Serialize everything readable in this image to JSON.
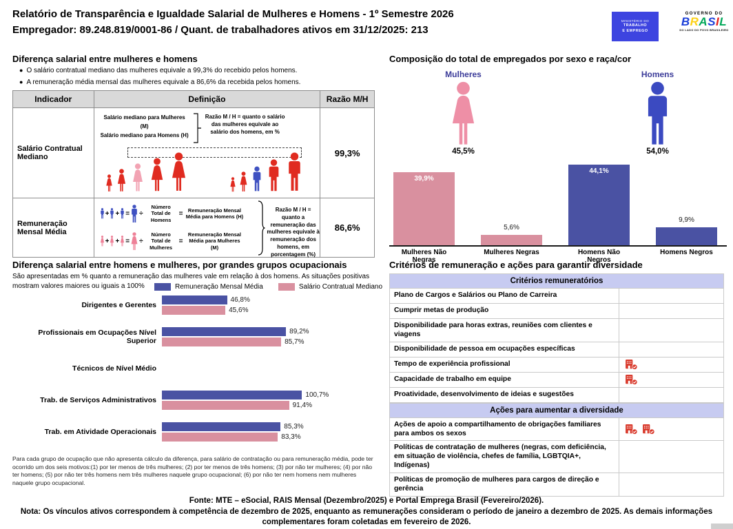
{
  "header": {
    "title_line1": "Relatório de Transparência e Igualdade Salarial de Mulheres e Homens - 1º Semestre 2026",
    "title_line2": "Empregador: 89.248.819/0001-86 / Quant. de trabalhadores ativos em 31/12/2025: 213",
    "mte_logo": {
      "line1": "MINISTÉRIO DO",
      "line2": "TRABALHO",
      "line3": "E EMPREGO",
      "bg": "#3d44e0"
    },
    "gov_logo": {
      "top": "GOVERNO DO",
      "word": "BRASIL",
      "bottom": "DO LADO DO POVO BRASILEIRO"
    }
  },
  "salary_gap": {
    "heading": "Diferença salarial entre mulheres e homens",
    "bullets": [
      "O salário contratual mediano das mulheres equivale a 99,3% do recebido pelos homens.",
      "A remuneração média mensal das mulheres equivale a 86,6% da recebida pelos homens."
    ],
    "table": {
      "headers": [
        "Indicador",
        "Definição",
        "Razão M/H"
      ],
      "row_median": {
        "indicator": "Salário Contratual Mediano",
        "line_women": "Salário mediano para Mulheres (M)",
        "line_men": "Salário mediano para Homens (H)",
        "note": "Razão M / H = quanto o salário das mulheres equivale ao salário dos homens, em %",
        "ratio": "99,3%"
      },
      "row_mean": {
        "indicator": "Remuneração Mensal Média",
        "plus": "+",
        "equals": "=",
        "divide": "÷",
        "men_divisor": "Número Total de Homens",
        "men_result": "Remuneração Mensal Média para Homens (H)",
        "women_divisor": "Número Total de Mulheres",
        "women_result": "Remuneração Mensal Média para Mulheres (M)",
        "note": "Razão M / H = quanto a remuneração das mulheres equivale à remuneração dos homens, em porcentagem (%)",
        "ratio": "86,6%"
      }
    }
  },
  "composition": {
    "heading": "Composição do total de empregados por sexo e raça/cor",
    "women_label": "Mulheres",
    "women_pct": "45,5%",
    "men_label": "Homens",
    "men_pct": "54,0%"
  },
  "occupational": {
    "heading": "Diferença salarial entre homens e mulheres, por grandes grupos ocupacionais",
    "subtitle": "São apresentadas em % quanto a remuneração das mulheres vale em relação à dos homens. As situações positivas mostram valores maiores ou iguais a 100%",
    "legend": [
      {
        "label": "Remuneração Mensal Média",
        "color": "#4a52a3"
      },
      {
        "label": "Salário Contratual Mediano",
        "color": "#d9909f"
      }
    ],
    "footnote": "Para cada grupo de ocupação que não apresenta cálculo da diferença, para salário de contratação ou para remuneração média, pode ter ocorrido um dos seis motivos:(1) por ter menos de três mulheres; (2) por ter menos de três homens; (3) por não ter mulheres; (4) por não ter homens; (5) por não ter três homens nem três mulheres naquele grupo ocupacional; (6) por não ter nem homens nem mulheres naquele grupo ocupacional."
  },
  "criteria": {
    "heading": "Critérios de remuneração e ações para garantir diversidade",
    "remuneration_header": "Critérios remuneratórios",
    "remuneration_rows": [
      {
        "label": "Plano de Cargos e Salários ou Plano de Carreira",
        "icons": 0
      },
      {
        "label": "Cumprir metas de produção",
        "icons": 0
      },
      {
        "label": "Disponibilidade para horas extras, reuniões com clientes e viagens",
        "icons": 0
      },
      {
        "label": "Disponibilidade de pessoa em ocupações específicas",
        "icons": 0
      },
      {
        "label": "Tempo de experiência profissional",
        "icons": 1
      },
      {
        "label": "Capacidade de trabalho em equipe",
        "icons": 1
      },
      {
        "label": "Proatividade, desenvolvimento de ideias e sugestões",
        "icons": 0
      }
    ],
    "diversity_header": "Ações para aumentar a diversidade",
    "diversity_rows": [
      {
        "label": "Ações de apoio a compartilhamento de obrigações familiares para ambos os sexos",
        "icons": 2
      },
      {
        "label": "Políticas de contratação de mulheres (negras, com deficiência, em situação de violência, chefes de família, LGBTQIA+, Indígenas)",
        "icons": 0
      },
      {
        "label": "Políticas de promoção de mulheres para cargos de direção e gerência",
        "icons": 0
      }
    ]
  },
  "footer": {
    "fonte": "Fonte: MTE – eSocial, RAIS Mensal (Dezembro/2025) e Portal Emprega Brasil (Fevereiro/2026).",
    "nota": "Nota: Os vínculos ativos correspondem à competência de dezembro de 2025, enquanto as remunerações consideram o período de janeiro a dezembro de 2025. As demais informações complementares foram coletadas em fevereiro de 2026."
  },
  "chart_data": [
    {
      "type": "bar",
      "title": "Composição do total de empregados por sexo e raça/cor",
      "categories": [
        "Mulheres Não Negras",
        "Mulheres Negras",
        "Homens Não Negros",
        "Homens Negros"
      ],
      "values": [
        39.9,
        5.6,
        44.1,
        9.9
      ],
      "value_labels": [
        "39,9%",
        "5,6%",
        "44,1%",
        "9,9%"
      ],
      "colors": [
        "#d9909f",
        "#d9909f",
        "#4a52a3",
        "#4a52a3"
      ],
      "annotations": {
        "Mulheres": "45,5%",
        "Homens": "54,0%"
      },
      "ylim": [
        0,
        47
      ],
      "grid": false,
      "legend_position": "none"
    },
    {
      "type": "bar",
      "orientation": "horizontal",
      "title": "Diferença salarial entre homens e mulheres, por grandes grupos ocupacionais",
      "categories": [
        "Dirigentes e Gerentes",
        "Profissionais em Ocupações Nível Superior",
        "Técnicos de Nível Médio",
        "Trab. de Serviços Administrativos",
        "Trab. em Atividade Operacionais"
      ],
      "series": [
        {
          "name": "Remuneração Mensal Média",
          "color": "#4a52a3",
          "values": [
            46.8,
            89.2,
            null,
            100.7,
            85.3
          ],
          "labels": [
            "46,8%",
            "89,2%",
            "",
            "100,7%",
            "85,3%"
          ]
        },
        {
          "name": "Salário Contratual Mediano",
          "color": "#d9909f",
          "values": [
            45.6,
            85.7,
            null,
            91.4,
            83.3
          ],
          "labels": [
            "45,6%",
            "85,7%",
            "",
            "91,4%",
            "83,3%"
          ]
        }
      ],
      "xlim": [
        0,
        105
      ],
      "grid": false,
      "legend_position": "top"
    }
  ]
}
